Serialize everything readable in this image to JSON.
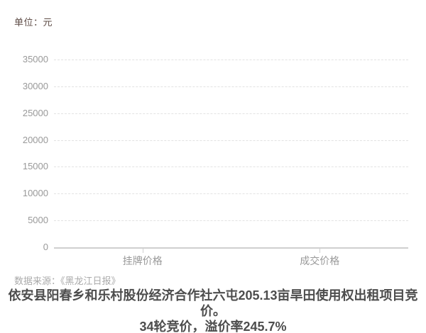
{
  "unit_label": "单位：元",
  "source_label": "数据来源：《黑龙江日报》",
  "title": {
    "line1": "依安县阳春乡和乐村股份经济合作社六屯205.13亩旱田使用权出租项目竞价。",
    "line2": "34轮竞价，溢价率245.7%"
  },
  "colors": {
    "background": "#ffffff",
    "unit_text": "#5e4c46",
    "axis_label": "#999999",
    "gridline": "#e2e2e2",
    "axis_line": "#cfcfcf",
    "source_text": "#aaaaaa",
    "title_text": "#4d4d4d"
  },
  "chart_data": {
    "type": "bar",
    "categories": [
      "挂牌价格",
      "成交价格"
    ],
    "values": [
      null,
      null
    ],
    "bars_visible": false,
    "title": "依安县阳春乡和乐村股份经济合作社六屯205.13亩旱田使用权出租项目竞价。34轮竞价，溢价率245.7%",
    "unit": "元",
    "xlabel": "",
    "ylabel": "",
    "ylim": [
      0,
      35000
    ],
    "yticks": [
      0,
      5000,
      10000,
      15000,
      20000,
      25000,
      30000,
      35000
    ],
    "grid": "horizontal dashed gridlines, solid baseline axis",
    "legend": "none",
    "source": "《黑龙江日报》"
  }
}
